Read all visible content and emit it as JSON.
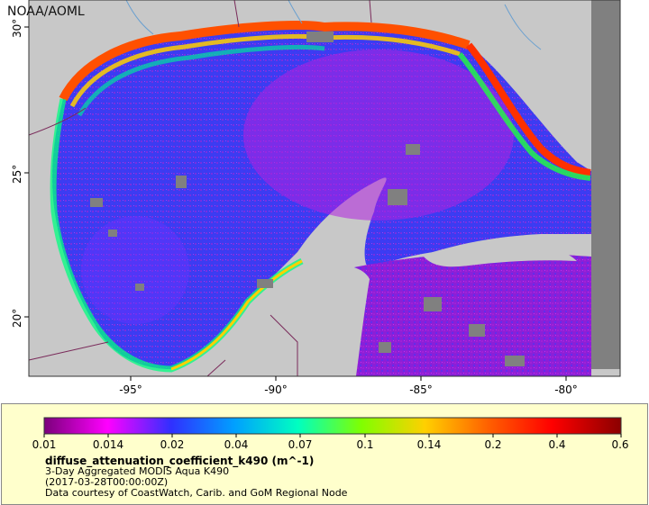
{
  "map": {
    "credit": "NOAA/AOML",
    "x_ticks": [
      "-95°",
      "-90°",
      "-85°",
      "-80°"
    ],
    "y_ticks": [
      "30°",
      "25°",
      "20°"
    ],
    "land_color": "#c8c8c8",
    "nodata_color": "#808080",
    "border_color": "#7a2a5a",
    "river_color": "#6aa0d0"
  },
  "legend": {
    "tick_labels": [
      "0.01",
      "0.014",
      "0.02",
      "0.04",
      "0.07",
      "0.1",
      "0.14",
      "0.2",
      "0.4",
      "0.6"
    ],
    "colors": [
      "#7b007b",
      "#ff00ff",
      "#3030ff",
      "#00a0ff",
      "#00ffc0",
      "#80ff00",
      "#ffd000",
      "#ff6000",
      "#ff0000",
      "#8b0000"
    ],
    "variable": "diffuse_attenuation_coefficient_k490 (m^-1)",
    "line1": "3-Day Aggregated MODIS Aqua K490",
    "line2": "(2017-03-28T00:00:00Z)",
    "line3": "Data courtesy of CoastWatch, Carib. and GoM Regional Node"
  }
}
